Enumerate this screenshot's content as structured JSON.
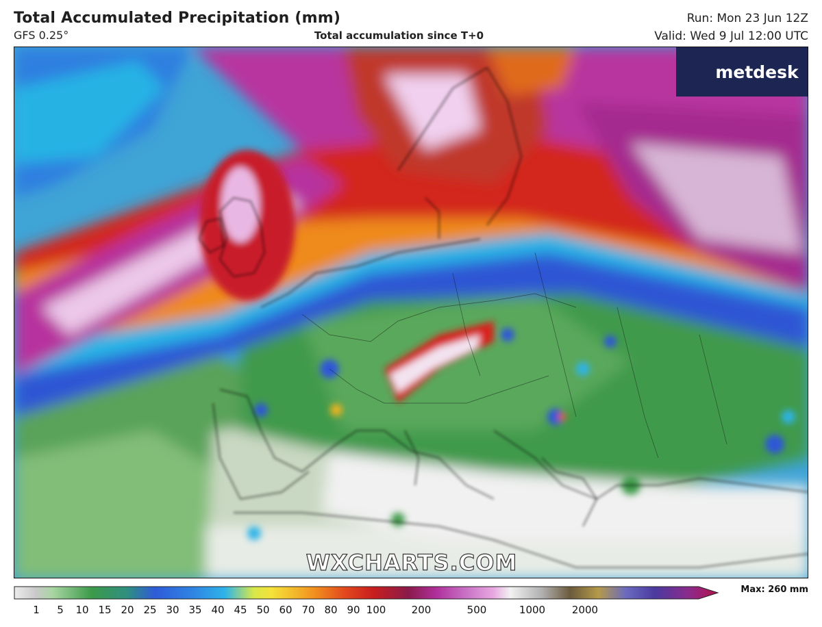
{
  "header": {
    "title": "Total Accumulated Precipitation (mm)",
    "model": "GFS 0.25°",
    "subtitle": "Total accumulation since T+0",
    "run": "Run: Mon 23 Jun 12Z",
    "valid": "Valid: Wed 9 Jul 12:00 UTC"
  },
  "brand": {
    "name": "metdesk",
    "icon": "metdesk-starburst-icon"
  },
  "watermark": "WXCHARTS.COM",
  "legend": {
    "max_label": "Max: 260 mm",
    "ticks": [
      "1",
      "5",
      "10",
      "15",
      "20",
      "25",
      "30",
      "35",
      "40",
      "45",
      "50",
      "60",
      "70",
      "80",
      "90",
      "100",
      "200",
      "500",
      "1000",
      "2000"
    ],
    "colors": {
      "gray": "#d9d9d9",
      "light_green": "#a8d5a2",
      "green": "#3c9a4a",
      "blue": "#2f5bd8",
      "cyan": "#2fb4e8",
      "yellow": "#f4e33a",
      "orange": "#f08a1e",
      "red": "#c81e1e",
      "magenta": "#b0309c",
      "pink": "#e7a6e0",
      "white": "#f2f2f2",
      "dark": "#6b5a3c",
      "indigo": "#4b3aa0",
      "crimson": "#b5124c"
    }
  }
}
